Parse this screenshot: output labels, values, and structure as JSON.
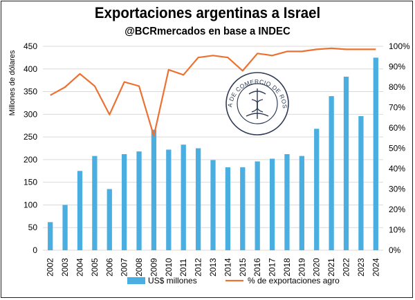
{
  "chart_data": {
    "type": "bar",
    "title": "Exportaciones argentinas a Israel",
    "subtitle": "@BCRmercados en base a INDEC",
    "ylabel": "Millones de dólares",
    "y2label": "",
    "categories": [
      "2002",
      "2003",
      "2004",
      "2005",
      "2006",
      "2007",
      "2008",
      "2009",
      "2010",
      "2011",
      "2012",
      "2013",
      "2014",
      "2015",
      "2016",
      "2017",
      "2018",
      "2019",
      "2020",
      "2021",
      "2022",
      "2023",
      "2024"
    ],
    "ylim": [
      0,
      450
    ],
    "yticks": [
      "0",
      "50",
      "100",
      "150",
      "200",
      "250",
      "300",
      "350",
      "400",
      "450"
    ],
    "y2lim": [
      0,
      100
    ],
    "y2ticks": [
      "0%",
      "10%",
      "20%",
      "30%",
      "40%",
      "50%",
      "60%",
      "70%",
      "80%",
      "90%",
      "100%"
    ],
    "grid": true,
    "legend_position": "bottom",
    "series": [
      {
        "name": "US$ millones",
        "type": "bar",
        "axis": "left",
        "color": "#4aaee0",
        "values": [
          62,
          100,
          175,
          208,
          135,
          212,
          218,
          266,
          222,
          233,
          225,
          199,
          183,
          183,
          196,
          202,
          212,
          208,
          268,
          340,
          383,
          296,
          425
        ]
      },
      {
        "name": "% de exportaciones agro",
        "type": "line",
        "axis": "right",
        "color": "#ec7131",
        "values": [
          76,
          80,
          86.5,
          80.5,
          66.5,
          82.5,
          80.5,
          56,
          88.5,
          86,
          94.5,
          95.5,
          94.5,
          88,
          96.5,
          95.5,
          97.5,
          97.5,
          98.5,
          99,
          98.5,
          98.5,
          98.5
        ]
      }
    ]
  },
  "watermark": {
    "text": "BOLSA DE COMERCIO DE ROSARIO",
    "icon": "caduceus-seal-icon"
  }
}
